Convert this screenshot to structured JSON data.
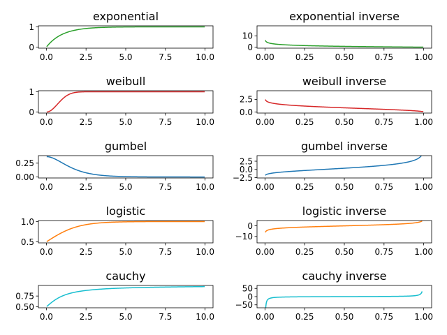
{
  "chart_data": [
    {
      "type": "line",
      "title": "exponential",
      "color": "#2ca02c",
      "curve": "exponential_cdf",
      "xlim": [
        -0.5,
        10.5
      ],
      "ylim": [
        -0.05,
        1.05
      ],
      "xticks": [
        0,
        2.5,
        5,
        7.5,
        10
      ],
      "xtick_labels": [
        "0.0",
        "2.5",
        "5.0",
        "7.5",
        "10.0"
      ],
      "yticks": [
        0,
        1
      ],
      "ytick_labels": [
        "0",
        "1"
      ]
    },
    {
      "type": "line",
      "title": "exponential inverse",
      "color": "#2ca02c",
      "curve": "exponential_inverse",
      "xlim": [
        -0.05,
        1.05
      ],
      "ylim": [
        -0.9,
        18.9
      ],
      "xticks": [
        0,
        0.25,
        0.5,
        0.75,
        1
      ],
      "xtick_labels": [
        "0.00",
        "0.25",
        "0.50",
        "0.75",
        "1.00"
      ],
      "yticks": [
        0,
        10
      ],
      "ytick_labels": [
        "0",
        "10"
      ]
    },
    {
      "type": "line",
      "title": "weibull",
      "color": "#d62728",
      "curve": "weibull_cdf",
      "xlim": [
        -0.5,
        10.5
      ],
      "ylim": [
        -0.05,
        1.05
      ],
      "xticks": [
        0,
        2.5,
        5,
        7.5,
        10
      ],
      "xtick_labels": [
        "0.0",
        "2.5",
        "5.0",
        "7.5",
        "10.0"
      ],
      "yticks": [
        0,
        1
      ],
      "ytick_labels": [
        "0",
        "1"
      ]
    },
    {
      "type": "line",
      "title": "weibull inverse",
      "color": "#d62728",
      "curve": "weibull_inverse",
      "xlim": [
        -0.05,
        1.05
      ],
      "ylim": [
        -0.2,
        4.2
      ],
      "xticks": [
        0,
        0.25,
        0.5,
        0.75,
        1
      ],
      "xtick_labels": [
        "0.00",
        "0.25",
        "0.50",
        "0.75",
        "1.00"
      ],
      "yticks": [
        0,
        2.5
      ],
      "ytick_labels": [
        "0.0",
        "2.5"
      ]
    },
    {
      "type": "line",
      "title": "gumbel",
      "color": "#1f77b4",
      "curve": "gumbel_density",
      "xlim": [
        -0.5,
        10.5
      ],
      "ylim": [
        -0.018,
        0.386
      ],
      "xticks": [
        0,
        2.5,
        5,
        7.5,
        10
      ],
      "xtick_labels": [
        "0.0",
        "2.5",
        "5.0",
        "7.5",
        "10.0"
      ],
      "yticks": [
        0,
        0.25
      ],
      "ytick_labels": [
        "0.00",
        "0.25"
      ]
    },
    {
      "type": "line",
      "title": "gumbel inverse",
      "color": "#1f77b4",
      "curve": "gumbel_inverse",
      "xlim": [
        -0.05,
        1.05
      ],
      "ylim": [
        -2.6,
        4.2
      ],
      "xticks": [
        0,
        0.25,
        0.5,
        0.75,
        1
      ],
      "xtick_labels": [
        "0.00",
        "0.25",
        "0.50",
        "0.75",
        "1.00"
      ],
      "yticks": [
        -2.5,
        0,
        2.5
      ],
      "ytick_labels": [
        "−2.5",
        "0.0",
        "2.5"
      ]
    },
    {
      "type": "line",
      "title": "logistic",
      "color": "#ff7f0e",
      "curve": "logistic_cdf",
      "xlim": [
        -0.5,
        10.5
      ],
      "ylim": [
        0.475,
        1.025
      ],
      "xticks": [
        0,
        2.5,
        5,
        7.5,
        10
      ],
      "xtick_labels": [
        "0.0",
        "2.5",
        "5.0",
        "7.5",
        "10.0"
      ],
      "yticks": [
        0.5,
        1
      ],
      "ytick_labels": [
        "0.5",
        "1.0"
      ]
    },
    {
      "type": "line",
      "title": "logistic inverse",
      "color": "#ff7f0e",
      "curve": "logistic_inverse",
      "xlim": [
        -0.05,
        1.05
      ],
      "ylim": [
        -16,
        5
      ],
      "xticks": [
        0,
        0.25,
        0.5,
        0.75,
        1
      ],
      "xtick_labels": [
        "0.00",
        "0.25",
        "0.50",
        "0.75",
        "1.00"
      ],
      "yticks": [
        -10,
        0
      ],
      "ytick_labels": [
        "−10",
        "0"
      ]
    },
    {
      "type": "line",
      "title": "cauchy",
      "color": "#17becf",
      "curve": "cauchy_cdf",
      "xlim": [
        -0.5,
        10.5
      ],
      "ylim": [
        0.478,
        0.995
      ],
      "xticks": [
        0,
        2.5,
        5,
        7.5,
        10
      ],
      "xtick_labels": [
        "0.0",
        "2.5",
        "5.0",
        "7.5",
        "10.0"
      ],
      "yticks": [
        0.5,
        0.75
      ],
      "ytick_labels": [
        "0.50",
        "0.75"
      ]
    },
    {
      "type": "line",
      "title": "cauchy inverse",
      "color": "#17becf",
      "curve": "cauchy_inverse",
      "xlim": [
        -0.05,
        1.05
      ],
      "ylim": [
        -68,
        68
      ],
      "xticks": [
        0,
        0.25,
        0.5,
        0.75,
        1
      ],
      "xtick_labels": [
        "0.00",
        "0.25",
        "0.50",
        "0.75",
        "1.00"
      ],
      "yticks": [
        -50,
        0,
        50
      ],
      "ytick_labels": [
        "−50",
        "0",
        "50"
      ]
    }
  ]
}
